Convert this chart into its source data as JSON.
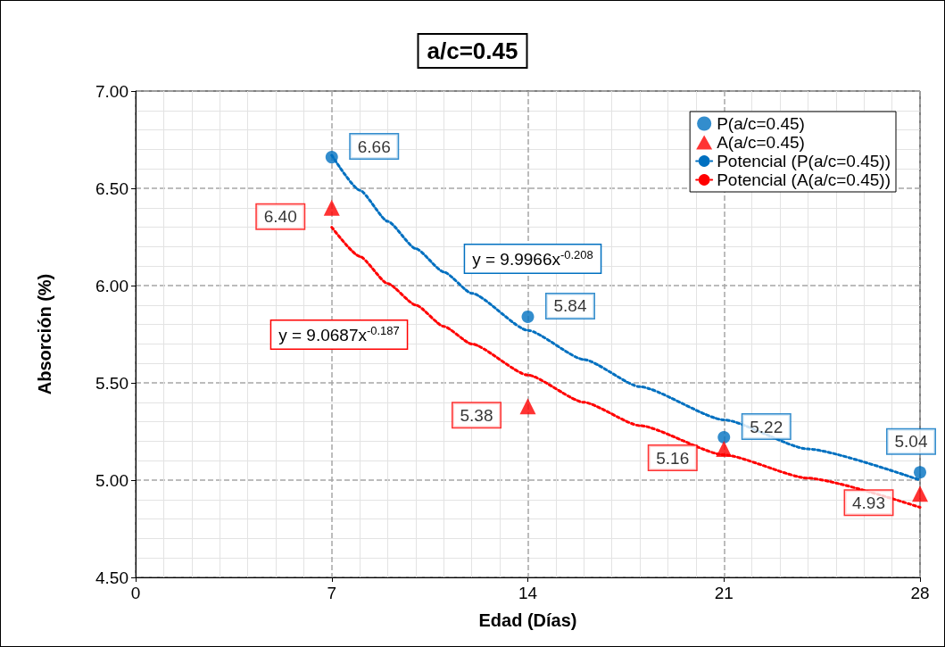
{
  "chart_data": {
    "type": "scatter",
    "title": "a/c=0.45",
    "xlabel": "Edad (Días)",
    "ylabel": "Absorción (%)",
    "xlim": [
      0,
      28
    ],
    "xticks": [
      0,
      7,
      14,
      21,
      28
    ],
    "ylim": [
      4.5,
      7.0
    ],
    "yticks": [
      {
        "value": 4.5,
        "label": "4.50"
      },
      {
        "value": 5.0,
        "label": "5.00"
      },
      {
        "value": 5.5,
        "label": "5.50"
      },
      {
        "value": 6.0,
        "label": "6.00"
      },
      {
        "value": 6.5,
        "label": "6.50"
      },
      {
        "value": 7.0,
        "label": "7.00"
      }
    ],
    "grid": true,
    "legend": "top right",
    "series": [
      {
        "name": "P(a/c=0.45)",
        "type": "scatter",
        "color": "#0070c0",
        "marker": "circle",
        "x": [
          7,
          14,
          21,
          28
        ],
        "values": [
          6.66,
          5.84,
          5.22,
          5.04
        ],
        "value_labels": [
          "6.66",
          "5.84",
          "5.22",
          "5.04"
        ]
      },
      {
        "name": "A(a/c=0.45)",
        "type": "scatter",
        "color": "#ff0000",
        "marker": "triangle",
        "x": [
          7,
          14,
          21,
          28
        ],
        "values": [
          6.4,
          5.38,
          5.16,
          4.93
        ],
        "value_labels": [
          "6.40",
          "5.38",
          "5.16",
          "4.93"
        ]
      },
      {
        "name": "Potencial (P(a/c=0.45))",
        "type": "line",
        "color": "#0070c0",
        "marker": "none",
        "line_style": "dotted",
        "x": [
          7,
          8,
          9,
          10,
          11,
          12,
          14,
          16,
          18,
          21,
          24,
          28
        ],
        "values": [
          6.67,
          6.49,
          6.33,
          6.19,
          6.07,
          5.96,
          5.77,
          5.62,
          5.48,
          5.31,
          5.16,
          5.0
        ]
      },
      {
        "name": "Potencial (A(a/c=0.45))",
        "type": "line",
        "color": "#ff0000",
        "marker": "none",
        "line_style": "dotted",
        "x": [
          7,
          8,
          9,
          10,
          11,
          12,
          14,
          16,
          18,
          21,
          24,
          28
        ],
        "values": [
          6.3,
          6.15,
          6.01,
          5.9,
          5.79,
          5.7,
          5.54,
          5.4,
          5.28,
          5.13,
          5.01,
          4.86
        ]
      }
    ],
    "annotations": [
      "y = 9.9966x$^{-0.208}$",
      "y = 9.0687x$^{-0.187}$"
    ]
  }
}
